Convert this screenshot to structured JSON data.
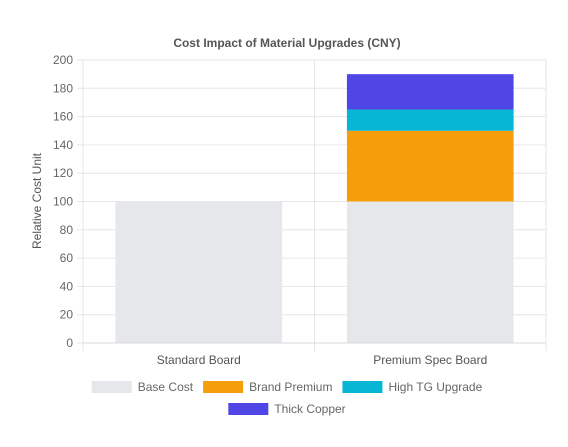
{
  "chart_data": {
    "type": "bar",
    "stacked": true,
    "title": "Cost Impact of Material Upgrades (CNY)",
    "xlabel": "",
    "ylabel": "Relative Cost Unit",
    "ylim": [
      0,
      200
    ],
    "yticks": [
      "0",
      "20",
      "40",
      "60",
      "80",
      "100",
      "120",
      "140",
      "160",
      "180",
      "200"
    ],
    "categories": [
      "Standard Board",
      "Premium Spec Board"
    ],
    "grid": true,
    "legend_position": "bottom",
    "series": [
      {
        "name": "Base Cost",
        "values": [
          100,
          100
        ],
        "color": "#e5e7eb"
      },
      {
        "name": "Brand Premium",
        "values": [
          0,
          50
        ],
        "color": "#f59e0b"
      },
      {
        "name": "High TG Upgrade",
        "values": [
          0,
          15
        ],
        "color": "#06b6d4"
      },
      {
        "name": "Thick Copper",
        "values": [
          0,
          25
        ],
        "color": "#4f46e5"
      }
    ]
  }
}
